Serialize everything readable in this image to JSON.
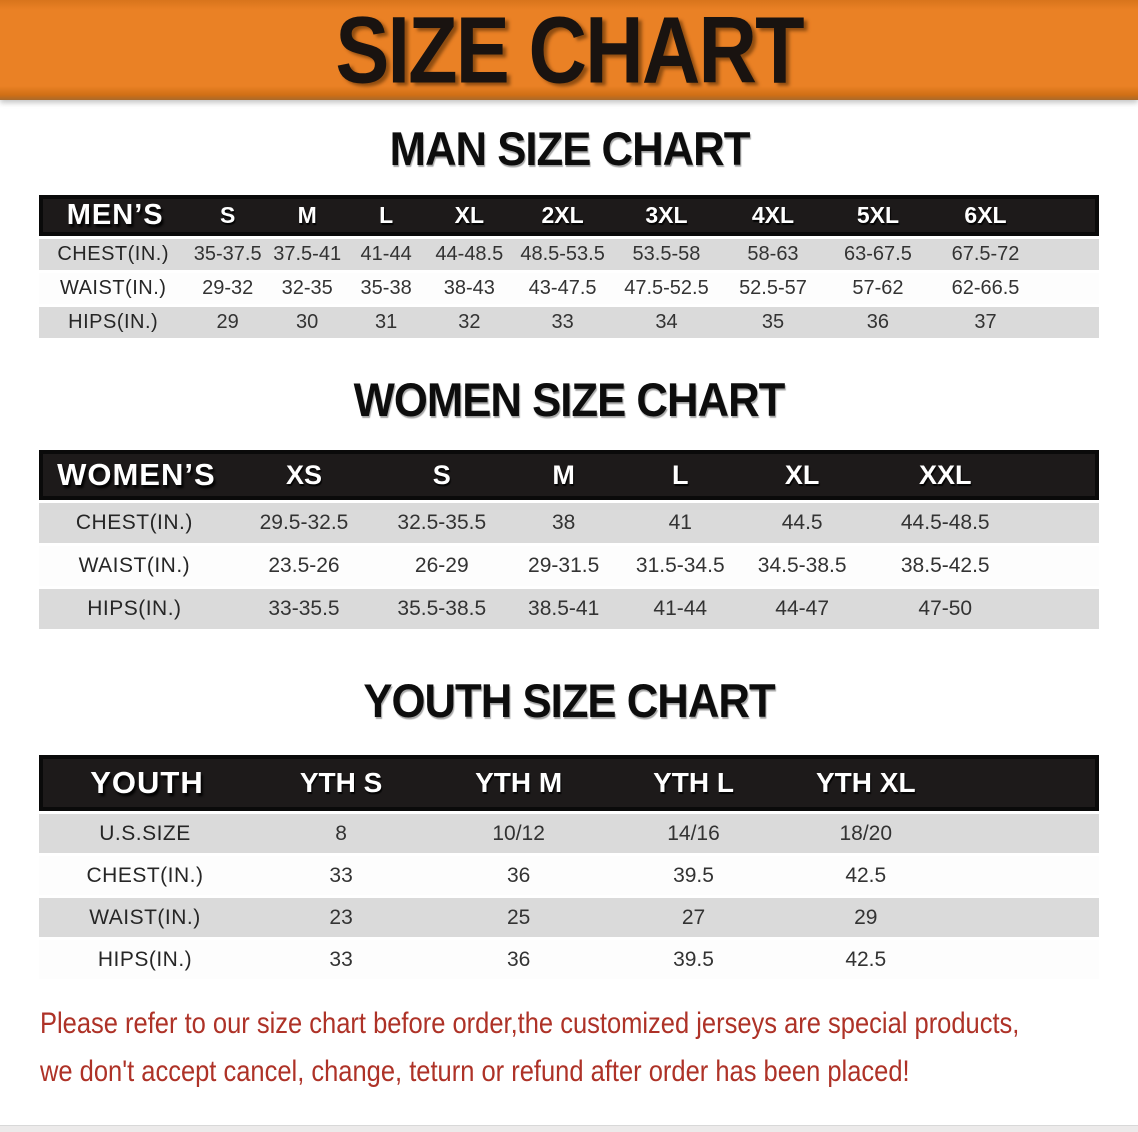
{
  "banner": {
    "title": "SIZE CHART"
  },
  "sections": [
    {
      "heading": "MAN SIZE CHART",
      "table": {
        "header_label": "MEN’S",
        "columns": [
          "S",
          "M",
          "L",
          "XL",
          "2XL",
          "3XL",
          "4XL",
          "5XL",
          "6XL"
        ],
        "rows": [
          {
            "label": "CHEST(IN.)",
            "values": [
              "35-37.5",
              "37.5-41",
              "41-44",
              "44-48.5",
              "48.5-53.5",
              "53.5-58",
              "58-63",
              "63-67.5",
              "67.5-72"
            ]
          },
          {
            "label": "WAIST(IN.)",
            "values": [
              "29-32",
              "32-35",
              "35-38",
              "38-43",
              "43-47.5",
              "47.5-52.5",
              "52.5-57",
              "57-62",
              "62-66.5"
            ]
          },
          {
            "label": "HIPS(IN.)",
            "values": [
              "29",
              "30",
              "31",
              "32",
              "33",
              "34",
              "35",
              "36",
              "37"
            ]
          }
        ]
      }
    },
    {
      "heading": "WOMEN SIZE CHART",
      "table": {
        "header_label": "WOMEN’S",
        "columns": [
          "XS",
          "S",
          "M",
          "L",
          "XL",
          "XXL"
        ],
        "rows": [
          {
            "label": "CHEST(IN.)",
            "values": [
              "29.5-32.5",
              "32.5-35.5",
              "38",
              "41",
              "44.5",
              "44.5-48.5"
            ]
          },
          {
            "label": "WAIST(IN.)",
            "values": [
              "23.5-26",
              "26-29",
              "29-31.5",
              "31.5-34.5",
              "34.5-38.5",
              "38.5-42.5"
            ]
          },
          {
            "label": "HIPS(IN.)",
            "values": [
              "33-35.5",
              "35.5-38.5",
              "38.5-41",
              "41-44",
              "44-47",
              "47-50"
            ]
          }
        ]
      }
    },
    {
      "heading": "YOUTH SIZE CHART",
      "table": {
        "header_label": "YOUTH",
        "columns": [
          "YTH S",
          "YTH M",
          "YTH L",
          "YTH XL"
        ],
        "rows": [
          {
            "label": "U.S.SIZE",
            "values": [
              "8",
              "10/12",
              "14/16",
              "18/20"
            ]
          },
          {
            "label": "CHEST(IN.)",
            "values": [
              "33",
              "36",
              "39.5",
              "42.5"
            ]
          },
          {
            "label": "WAIST(IN.)",
            "values": [
              "23",
              "25",
              "27",
              "29"
            ]
          },
          {
            "label": "HIPS(IN.)",
            "values": [
              "33",
              "36",
              "39.5",
              "42.5"
            ]
          }
        ]
      }
    }
  ],
  "disclaimer": {
    "line1": "Please refer to our size chart before order,the customized jerseys are special products,",
    "line2": "we don't accept cancel, change, teturn or refund after order has been placed!"
  },
  "colors": {
    "banner_orange": "#EA8125",
    "banner_bottom_edge": "#A96A2B",
    "table_header_black": "#1D1A1A",
    "row_gray": "#DADADA",
    "disclaimer_red": "#AE3227"
  }
}
